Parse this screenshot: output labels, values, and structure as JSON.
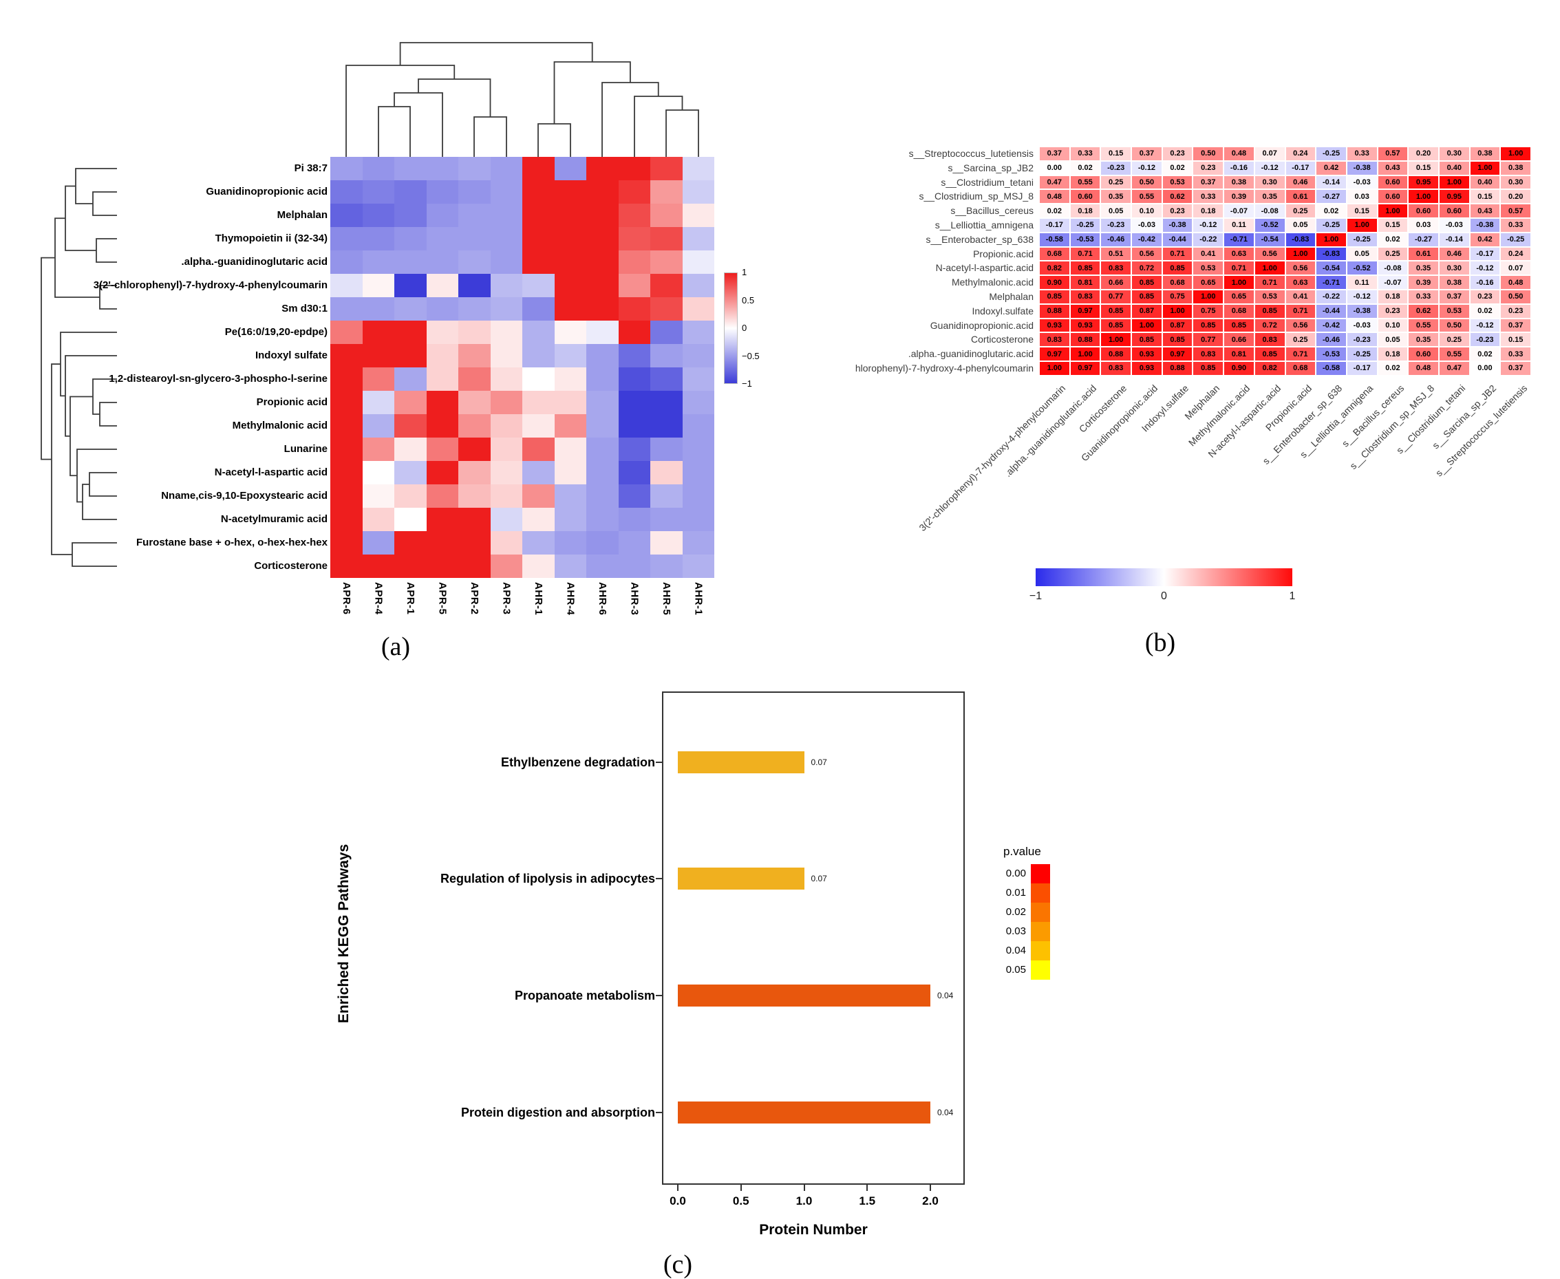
{
  "figure": {
    "panel_labels": {
      "a": "(a)",
      "b": "(b)",
      "c": "(c)"
    }
  },
  "chart_data": [
    {
      "id": "metabolite_sample_clustered_heatmap",
      "panel": "a",
      "type": "heatmap",
      "columns": [
        "APR-6",
        "APR-4",
        "APR-1",
        "APR-5",
        "APR-2",
        "APR-3",
        "AHR-1",
        "AHR-4",
        "AHR-6",
        "AHR-3",
        "AHR-5",
        "AHR-1"
      ],
      "rows": [
        "Pi 38:7",
        "Guanidinopropionic acid",
        "Melphalan",
        "Thymopoietin ii (32-34)",
        ".alpha.-guanidinoglutaric acid",
        "3(2'-chlorophenyl)-7-hydroxy-4-phenylcoumarin",
        "Sm d30:1",
        "Pe(16:0/19,20-epdpe)",
        "Indoxyl sulfate",
        "1,2-distearoyl-sn-glycero-3-phospho-l-serine",
        "Propionic acid",
        "Methylmalonic acid",
        "Lunarine",
        "N-acetyl-l-aspartic acid",
        "Nname,cis-9,10-Epoxystearic acid",
        "N-acetylmuramic acid",
        "Furostane base + o-hex, o-hex-hex-hex",
        "Corticosterone"
      ],
      "values": [
        [
          -0.5,
          -0.55,
          -0.5,
          -0.5,
          -0.45,
          -0.5,
          1.0,
          -0.55,
          1.0,
          1.0,
          0.85,
          -0.2
        ],
        [
          -0.7,
          -0.65,
          -0.7,
          -0.6,
          -0.55,
          -0.5,
          1.0,
          1.0,
          1.0,
          0.9,
          0.45,
          -0.25
        ],
        [
          -0.8,
          -0.75,
          -0.7,
          -0.55,
          -0.5,
          -0.5,
          1.0,
          1.0,
          1.0,
          0.8,
          0.5,
          0.1
        ],
        [
          -0.6,
          -0.6,
          -0.55,
          -0.5,
          -0.5,
          -0.5,
          1.0,
          1.0,
          1.0,
          0.75,
          0.8,
          -0.3
        ],
        [
          -0.55,
          -0.5,
          -0.5,
          -0.5,
          -0.45,
          -0.5,
          1.0,
          1.0,
          1.0,
          0.6,
          0.5,
          -0.1
        ],
        [
          -0.15,
          0.05,
          -1.0,
          0.1,
          -1.0,
          -0.35,
          -0.3,
          1.0,
          1.0,
          0.5,
          0.9,
          -0.35
        ],
        [
          -0.5,
          -0.5,
          -0.45,
          -0.5,
          -0.45,
          -0.4,
          -0.6,
          1.0,
          1.0,
          0.9,
          0.8,
          0.2
        ],
        [
          0.6,
          1.0,
          1.0,
          0.15,
          0.2,
          0.1,
          -0.4,
          0.05,
          -0.1,
          1.0,
          -0.7,
          -0.4
        ],
        [
          1.0,
          1.0,
          1.0,
          0.2,
          0.45,
          0.1,
          -0.4,
          -0.3,
          -0.5,
          -0.75,
          -0.5,
          -0.45
        ],
        [
          1.0,
          0.6,
          -0.45,
          0.2,
          0.6,
          0.15,
          0.0,
          0.1,
          -0.5,
          -0.9,
          -0.8,
          -0.4
        ],
        [
          1.0,
          -0.2,
          0.5,
          1.0,
          0.35,
          0.5,
          0.2,
          0.2,
          -0.45,
          -1.0,
          -1.0,
          -0.45
        ],
        [
          1.0,
          -0.4,
          0.8,
          1.0,
          0.5,
          0.25,
          0.1,
          0.5,
          -0.45,
          -1.0,
          -1.0,
          -0.5
        ],
        [
          1.0,
          0.5,
          0.1,
          0.6,
          1.0,
          0.2,
          0.7,
          0.1,
          -0.5,
          -0.8,
          -0.55,
          -0.5
        ],
        [
          1.0,
          0.0,
          -0.3,
          1.0,
          0.35,
          0.15,
          -0.4,
          0.1,
          -0.5,
          -0.9,
          0.2,
          -0.5
        ],
        [
          1.0,
          0.05,
          0.2,
          0.6,
          0.3,
          0.2,
          0.5,
          -0.4,
          -0.5,
          -0.8,
          -0.4,
          -0.5
        ],
        [
          1.0,
          0.2,
          0.0,
          1.0,
          1.0,
          -0.2,
          0.1,
          -0.4,
          -0.5,
          -0.55,
          -0.5,
          -0.5
        ],
        [
          1.0,
          -0.5,
          1.0,
          1.0,
          1.0,
          0.2,
          -0.4,
          -0.5,
          -0.55,
          -0.5,
          0.1,
          -0.45
        ],
        [
          1.0,
          1.0,
          1.0,
          1.0,
          1.0,
          0.5,
          0.1,
          -0.4,
          -0.5,
          -0.5,
          -0.45,
          -0.4
        ]
      ],
      "scale": {
        "min": -1,
        "max": 1,
        "low": "#3C3CD8",
        "mid": "#FFFFFF",
        "high": "#EE1E1E"
      },
      "colorbar_ticks": [
        "1",
        "0.5",
        "0",
        "−0.5",
        "−1"
      ]
    },
    {
      "id": "species_metabolite_correlation_heatmap",
      "panel": "b",
      "type": "heatmap",
      "show_values": true,
      "columns": [
        "3(2'-chlorophenyl)-7-hydroxy-4-phenylcoumarin",
        ".alpha.-guanidinoglutaric.acid",
        "Corticosterone",
        "Guanidinopropionic.acid",
        "Indoxyl.sulfate",
        "Melphalan",
        "Methylmalonic.acid",
        "N-acetyl-l-aspartic.acid",
        "Propionic.acid",
        "s__Enterobacter_sp_638",
        "s__Lelliottia_amnigena",
        "s__Bacillus_cereus",
        "s__Clostridium_sp_MSJ_8",
        "s__Clostridium_tetani",
        "s__Sarcina_sp_JB2",
        "s__Streptococcus_lutetiensis"
      ],
      "rows": [
        "s__Streptococcus_lutetiensis",
        "s__Sarcina_sp_JB2",
        "s__Clostridium_tetani",
        "s__Clostridium_sp_MSJ_8",
        "s__Bacillus_cereus",
        "s__Lelliottia_amnigena",
        "s__Enterobacter_sp_638",
        "Propionic.acid",
        "N-acetyl-l-aspartic.acid",
        "Methylmalonic.acid",
        "Melphalan",
        "Indoxyl.sulfate",
        "Guanidinopropionic.acid",
        "Corticosterone",
        ".alpha.-guanidinoglutaric.acid",
        "hlorophenyl)-7-hydroxy-4-phenylcoumarin"
      ],
      "values": [
        [
          0.37,
          0.33,
          0.15,
          0.37,
          0.23,
          0.5,
          0.48,
          0.07,
          0.24,
          -0.25,
          0.33,
          0.57,
          0.2,
          0.3,
          0.38,
          1.0
        ],
        [
          0.0,
          0.02,
          -0.23,
          -0.12,
          0.02,
          0.23,
          -0.16,
          -0.12,
          -0.17,
          0.42,
          -0.38,
          0.43,
          0.15,
          0.4,
          1.0,
          0.38
        ],
        [
          0.47,
          0.55,
          0.25,
          0.5,
          0.53,
          0.37,
          0.38,
          0.3,
          0.46,
          -0.14,
          -0.03,
          0.6,
          0.95,
          1.0,
          0.4,
          0.3
        ],
        [
          0.48,
          0.6,
          0.35,
          0.55,
          0.62,
          0.33,
          0.39,
          0.35,
          0.61,
          -0.27,
          0.03,
          0.6,
          1.0,
          0.95,
          0.15,
          0.2
        ],
        [
          0.02,
          0.18,
          0.05,
          0.1,
          0.23,
          0.18,
          -0.07,
          -0.08,
          0.25,
          0.02,
          0.15,
          1.0,
          0.6,
          0.6,
          0.43,
          0.57
        ],
        [
          -0.17,
          -0.25,
          -0.23,
          -0.03,
          -0.38,
          -0.12,
          0.11,
          -0.52,
          0.05,
          -0.25,
          1.0,
          0.15,
          0.03,
          -0.03,
          -0.38,
          0.33
        ],
        [
          -0.58,
          -0.53,
          -0.46,
          -0.42,
          -0.44,
          -0.22,
          -0.71,
          -0.54,
          -0.83,
          1.0,
          -0.25,
          0.02,
          -0.27,
          -0.14,
          0.42,
          -0.25
        ],
        [
          0.68,
          0.71,
          0.51,
          0.56,
          0.71,
          0.41,
          0.63,
          0.56,
          1.0,
          -0.83,
          0.05,
          0.25,
          0.61,
          0.46,
          -0.17,
          0.24
        ],
        [
          0.82,
          0.85,
          0.83,
          0.72,
          0.85,
          0.53,
          0.71,
          1.0,
          0.56,
          -0.54,
          -0.52,
          -0.08,
          0.35,
          0.3,
          -0.12,
          0.07
        ],
        [
          0.9,
          0.81,
          0.66,
          0.85,
          0.68,
          0.65,
          1.0,
          0.71,
          0.63,
          -0.71,
          0.11,
          -0.07,
          0.39,
          0.38,
          -0.16,
          0.48
        ],
        [
          0.85,
          0.83,
          0.77,
          0.85,
          0.75,
          1.0,
          0.65,
          0.53,
          0.41,
          -0.22,
          -0.12,
          0.18,
          0.33,
          0.37,
          0.23,
          0.5
        ],
        [
          0.88,
          0.97,
          0.85,
          0.87,
          1.0,
          0.75,
          0.68,
          0.85,
          0.71,
          -0.44,
          -0.38,
          0.23,
          0.62,
          0.53,
          0.02,
          0.23
        ],
        [
          0.93,
          0.93,
          0.85,
          1.0,
          0.87,
          0.85,
          0.85,
          0.72,
          0.56,
          -0.42,
          -0.03,
          0.1,
          0.55,
          0.5,
          -0.12,
          0.37
        ],
        [
          0.83,
          0.88,
          1.0,
          0.85,
          0.85,
          0.77,
          0.66,
          0.83,
          0.25,
          -0.46,
          -0.23,
          0.05,
          0.35,
          0.25,
          -0.23,
          0.15
        ],
        [
          0.97,
          1.0,
          0.88,
          0.93,
          0.97,
          0.83,
          0.81,
          0.85,
          0.71,
          -0.53,
          -0.25,
          0.18,
          0.6,
          0.55,
          0.02,
          0.33
        ],
        [
          1.0,
          0.97,
          0.83,
          0.93,
          0.88,
          0.85,
          0.9,
          0.82,
          0.68,
          -0.58,
          -0.17,
          0.02,
          0.48,
          0.47,
          0.0,
          0.37
        ]
      ],
      "scale": {
        "min": -1,
        "max": 1,
        "low": "#2B2BEB",
        "mid": "#FFFFFF",
        "high": "#FF0A0A"
      },
      "colorbar_ticks": [
        "−1",
        "0",
        "1"
      ]
    },
    {
      "id": "kegg_pathway_enrichment",
      "panel": "c",
      "type": "bar",
      "orientation": "horizontal",
      "categories": [
        "Ethylbenzene degradation",
        "Regulation of lipolysis in adipocytes",
        "Propanoate metabolism",
        "Protein digestion and absorption"
      ],
      "values": [
        1,
        1,
        2,
        2
      ],
      "bar_labels": [
        "0.07",
        "0.07",
        "0.04",
        "0.04"
      ],
      "bar_colors": [
        "#F0B01F",
        "#F0B01F",
        "#E8570D",
        "#E8570D"
      ],
      "xlabel": "Protein Number",
      "ylabel": "Enriched KEGG Pathways",
      "x_ticks": [
        "0.0",
        "0.5",
        "1.0",
        "1.5",
        "2.0"
      ],
      "xlim": [
        0,
        2.25
      ],
      "grid": false,
      "legend": {
        "title": "p.value",
        "position": "right",
        "labels": [
          "0.00",
          "0.01",
          "0.02",
          "0.03",
          "0.04",
          "0.05"
        ],
        "colors": [
          "#FF0000",
          "#FB4F00",
          "#FA7500",
          "#FB9B00",
          "#FDC100",
          "#FFFF00"
        ]
      }
    }
  ]
}
